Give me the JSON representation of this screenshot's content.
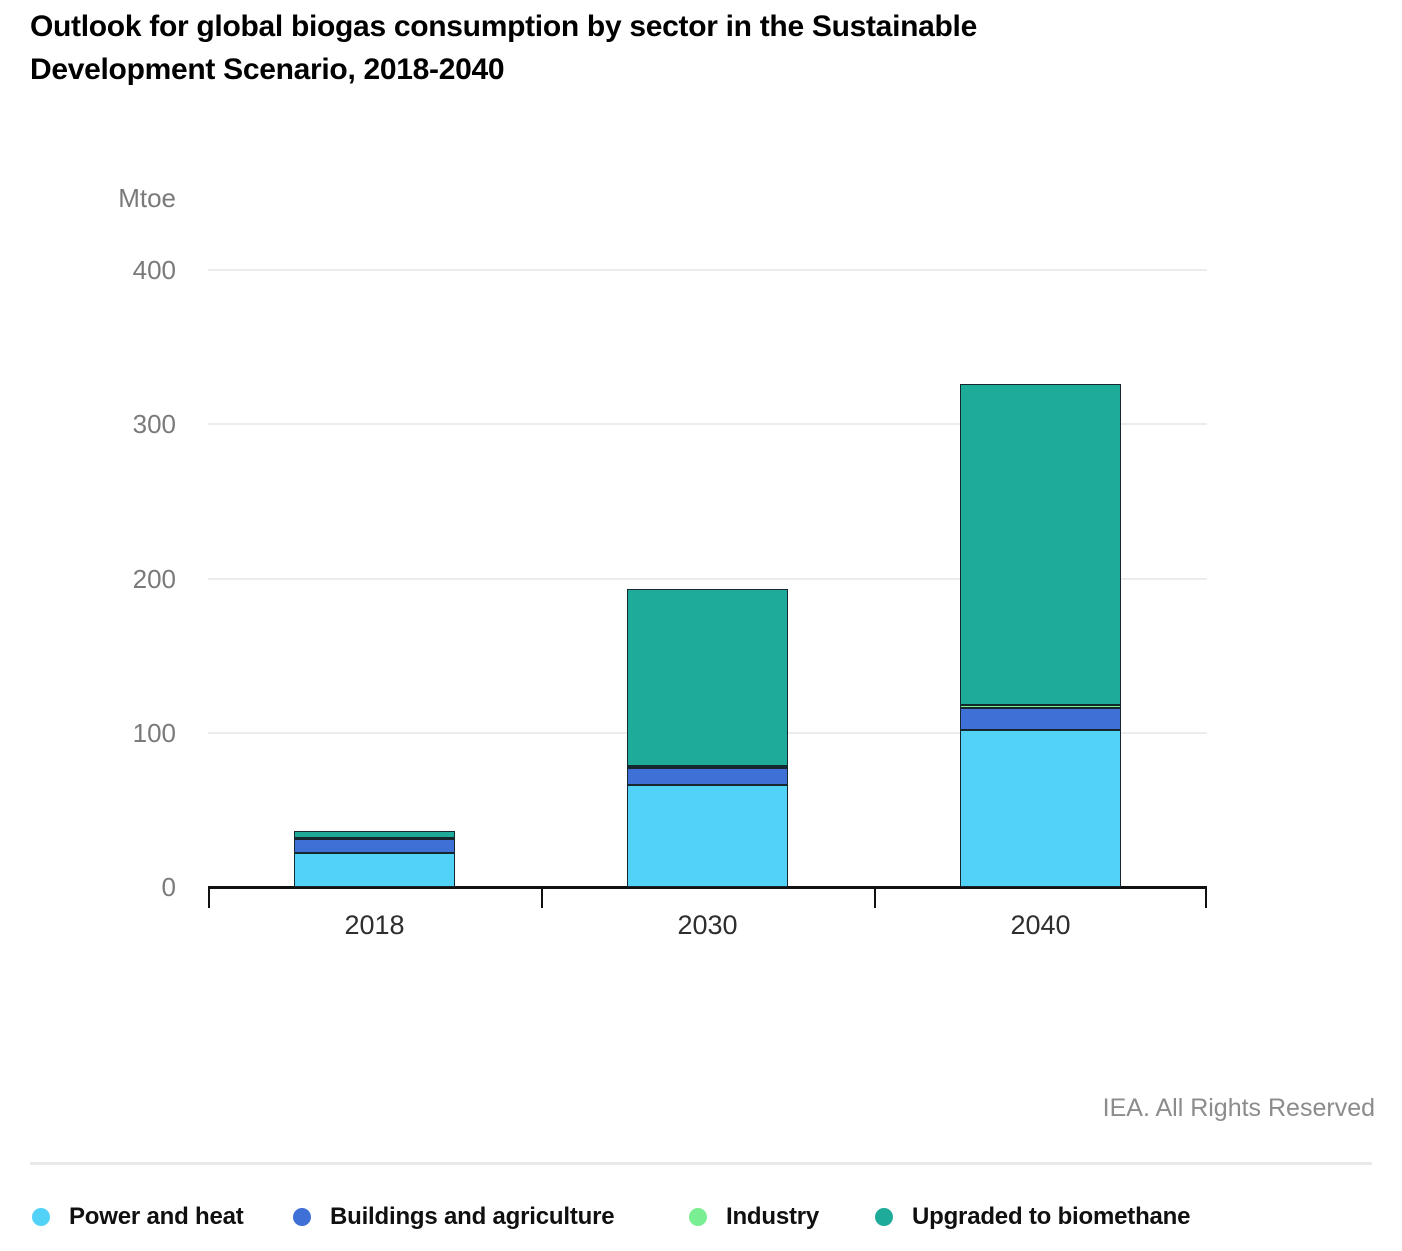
{
  "page": {
    "title_lines": [
      "Outlook for global biogas consumption by sector in the Sustainable",
      "Development Scenario, 2018-2040"
    ],
    "footer": "IEA. All Rights Reserved"
  },
  "chart_data": {
    "type": "bar",
    "stacked": true,
    "title": "Outlook for global biogas consumption by sector in the Sustainable Development Scenario, 2018-2040",
    "unit_label": "Mtoe",
    "xlabel": "",
    "ylabel": "Mtoe",
    "ylim": [
      0,
      400
    ],
    "yticks": [
      0,
      100,
      200,
      300,
      400
    ],
    "grid": true,
    "legend_position": "bottom",
    "categories": [
      "2018",
      "2030",
      "2040"
    ],
    "series": [
      {
        "name": "Power and heat",
        "color": "#53D2F8",
        "values": [
          22,
          66,
          102
        ]
      },
      {
        "name": "Buildings and agriculture",
        "color": "#3E70D6",
        "values": [
          9,
          11,
          14
        ]
      },
      {
        "name": "Industry",
        "color": "#79EE92",
        "values": [
          0.5,
          1.5,
          2
        ]
      },
      {
        "name": "Upgraded to biomethane",
        "color": "#1EAB99",
        "values": [
          5,
          115,
          208
        ]
      }
    ],
    "totals": [
      36.5,
      193.5,
      326
    ]
  },
  "legend": {
    "items": [
      {
        "label": "Power and heat",
        "color": "#53D2F8"
      },
      {
        "label": "Buildings and agriculture",
        "color": "#3E70D6"
      },
      {
        "label": "Industry",
        "color": "#79EE92"
      },
      {
        "label": "Upgraded to biomethane",
        "color": "#1EAB99"
      }
    ]
  }
}
